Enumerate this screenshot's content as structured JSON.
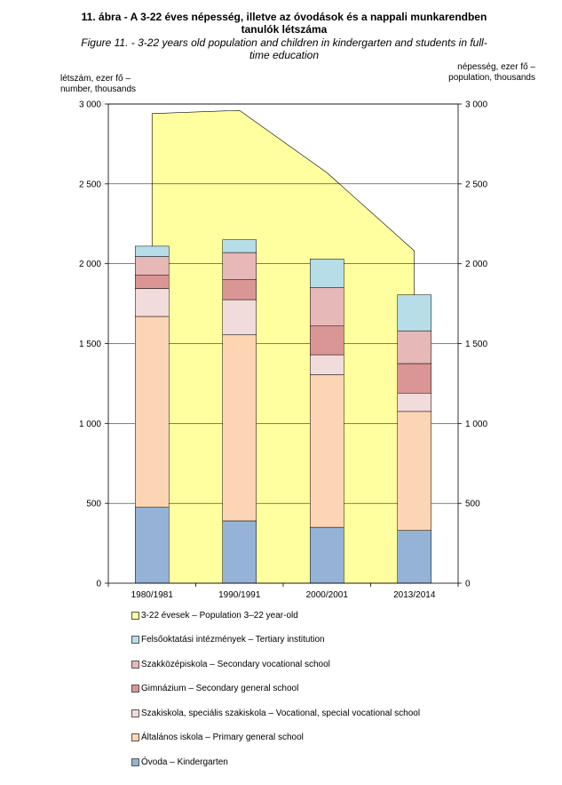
{
  "title_hu": "11. ábra - A 3-22 éves népesség, illetve az óvodások és a nappali munkarendben tanulók létszáma",
  "title_en": "Figure 11. - 3-22 years old population  and children in kindergarten and students in full-time education",
  "ylabel_left": "létszám, ezer fő –\nnumber, thousands",
  "ylabel_right": "népesség, ezer fő –\npopulation, thousands",
  "chart_data": {
    "type": "bar",
    "stacked": true,
    "categories": [
      "1980/1981",
      "1990/1991",
      "2000/2001",
      "2013/2014"
    ],
    "ylim": [
      0,
      3000
    ],
    "yticks": [
      0,
      500,
      1000,
      1500,
      2000,
      2500,
      3000
    ],
    "ytick_labels": [
      "0",
      "500",
      "1 000",
      "1 500",
      "2 000",
      "2 500",
      "3 000"
    ],
    "y2ticks": [
      0,
      500,
      1000,
      1500,
      2000,
      2500,
      3000
    ],
    "y2tick_labels": [
      "0",
      "500",
      "1 000",
      "1 500",
      "2 000",
      "2 500",
      "3 000"
    ],
    "grid": true,
    "area_series": {
      "name": "3-22 évesek – Population 3–22 year-old",
      "values": [
        2940,
        2960,
        2570,
        2080
      ],
      "color": "#ffffa0",
      "axis": "right"
    },
    "series": [
      {
        "name": "Óvoda – Kindergarten",
        "values": [
          475,
          390,
          350,
          330
        ],
        "color": "#95b3d7"
      },
      {
        "name": "Általános iskola – Primary general school",
        "values": [
          1195,
          1165,
          955,
          745
        ],
        "color": "#fcd5b4"
      },
      {
        "name": "Szakiskola, speciális szakiskola – Vocational, special vocational school",
        "values": [
          175,
          220,
          125,
          115
        ],
        "color": "#f2dcdb"
      },
      {
        "name": "Gimnázium – Secondary general school",
        "values": [
          85,
          125,
          180,
          185
        ],
        "color": "#da9694"
      },
      {
        "name": "Szakközépiskola – Secondary vocational school",
        "values": [
          115,
          170,
          240,
          205
        ],
        "color": "#e6b8b7"
      },
      {
        "name": "Felsőoktatási intézmények – Tertiary institution",
        "values": [
          65,
          80,
          180,
          225
        ],
        "color": "#b7dee8"
      }
    ]
  },
  "legend": [
    {
      "label": "3-22 évesek – Population 3–22 year-old",
      "color": "#ffffa0"
    },
    {
      "label": "Felsőoktatási intézmények – Tertiary institution",
      "color": "#b7dee8"
    },
    {
      "label": "Szakközépiskola – Secondary vocational school",
      "color": "#e6b8b7"
    },
    {
      "label": "Gimnázium – Secondary general school",
      "color": "#da9694"
    },
    {
      "label": "Szakiskola, speciális szakiskola – Vocational, special vocational school",
      "color": "#f2dcdb"
    },
    {
      "label": "Általános iskola – Primary general school",
      "color": "#fcd5b4"
    },
    {
      "label": "Óvoda – Kindergarten",
      "color": "#95b3d7"
    }
  ]
}
